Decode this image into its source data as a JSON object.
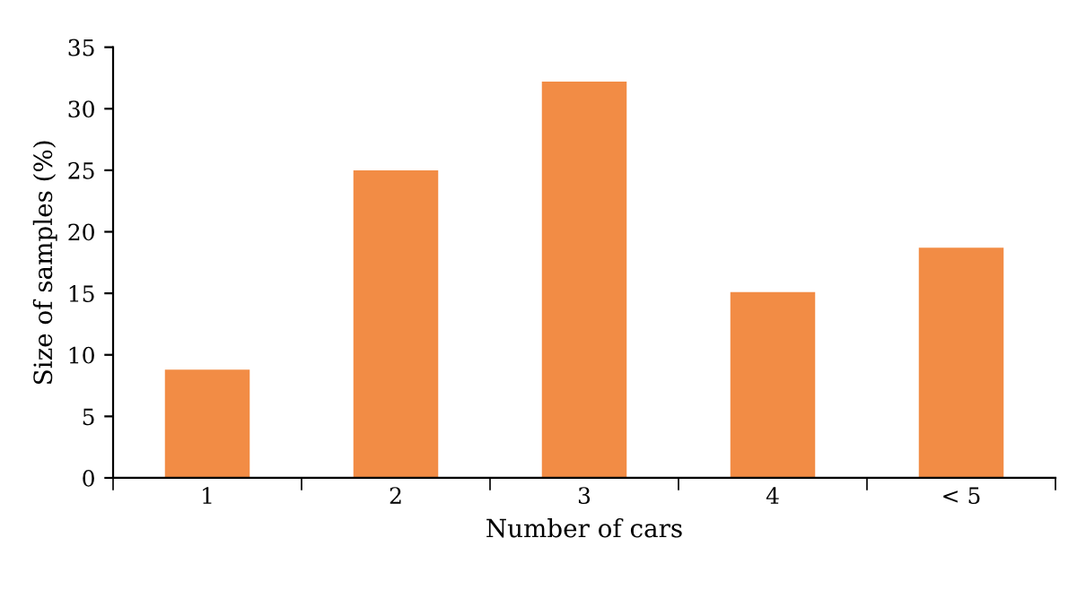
{
  "chart_data": {
    "type": "bar",
    "xlabel": "Number of cars",
    "ylabel": "Size of samples (%)",
    "categories": [
      "1",
      "2",
      "3",
      "4",
      "< 5"
    ],
    "values": [
      8.8,
      25,
      32.2,
      15.1,
      18.7
    ],
    "color": "#f28c45",
    "ylim": [
      0,
      35
    ],
    "yticks": [
      0,
      5,
      10,
      15,
      20,
      25,
      30,
      35
    ],
    "grid": false,
    "legend": false
  }
}
